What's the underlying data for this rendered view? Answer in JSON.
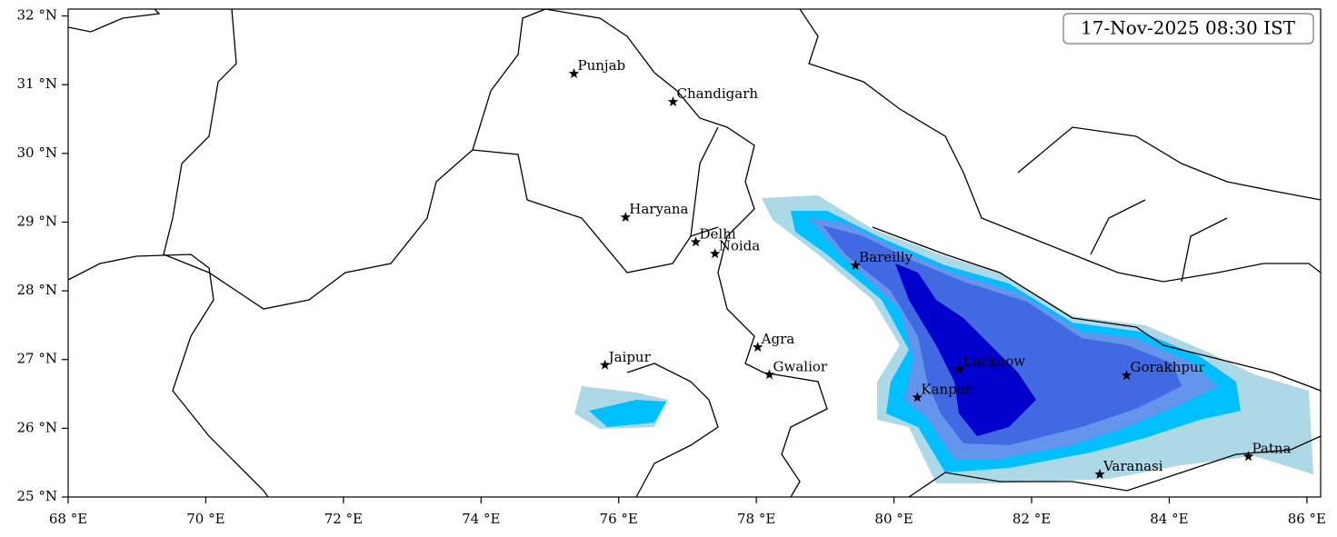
{
  "map": {
    "timestamp": "17-Nov-2025 08:30 IST",
    "xlim": [
      68,
      86.2
    ],
    "ylim": [
      25,
      32.1
    ],
    "xticks": [
      {
        "value": 68,
        "label": "68 °E"
      },
      {
        "value": 70,
        "label": "70 °E"
      },
      {
        "value": 72,
        "label": "72 °E"
      },
      {
        "value": 74,
        "label": "74 °E"
      },
      {
        "value": 76,
        "label": "76 °E"
      },
      {
        "value": 78,
        "label": "78 °E"
      },
      {
        "value": 80,
        "label": "80 °E"
      },
      {
        "value": 82,
        "label": "82 °E"
      },
      {
        "value": 84,
        "label": "84 °E"
      },
      {
        "value": 86,
        "label": "86 °E"
      }
    ],
    "yticks": [
      {
        "value": 25,
        "label": "25 °N"
      },
      {
        "value": 26,
        "label": "26 °N"
      },
      {
        "value": 27,
        "label": "27 °N"
      },
      {
        "value": 28,
        "label": "28 °N"
      },
      {
        "value": 29,
        "label": "29 °N"
      },
      {
        "value": 30,
        "label": "30 °N"
      },
      {
        "value": 31,
        "label": "31 °N"
      },
      {
        "value": 32,
        "label": "32 °N"
      }
    ],
    "cities": [
      {
        "name": "Punjab",
        "lon": 75.35,
        "lat": 31.16
      },
      {
        "name": "Chandigarh",
        "lon": 76.79,
        "lat": 30.75
      },
      {
        "name": "Haryana",
        "lon": 76.1,
        "lat": 29.07
      },
      {
        "name": "Delhi",
        "lon": 77.12,
        "lat": 28.71
      },
      {
        "name": "Noida",
        "lon": 77.4,
        "lat": 28.54
      },
      {
        "name": "Bareilly",
        "lon": 79.44,
        "lat": 28.37
      },
      {
        "name": "Agra",
        "lon": 78.02,
        "lat": 27.18
      },
      {
        "name": "Jaipur",
        "lon": 75.8,
        "lat": 26.92
      },
      {
        "name": "Gwalior",
        "lon": 78.19,
        "lat": 26.78
      },
      {
        "name": "Lucknow",
        "lon": 80.95,
        "lat": 26.86
      },
      {
        "name": "Kanpur",
        "lon": 80.34,
        "lat": 26.45
      },
      {
        "name": "Gorakhpur",
        "lon": 83.38,
        "lat": 26.77
      },
      {
        "name": "Varanasi",
        "lon": 82.99,
        "lat": 25.33
      },
      {
        "name": "Patna",
        "lon": 85.15,
        "lat": 25.59
      }
    ]
  }
}
